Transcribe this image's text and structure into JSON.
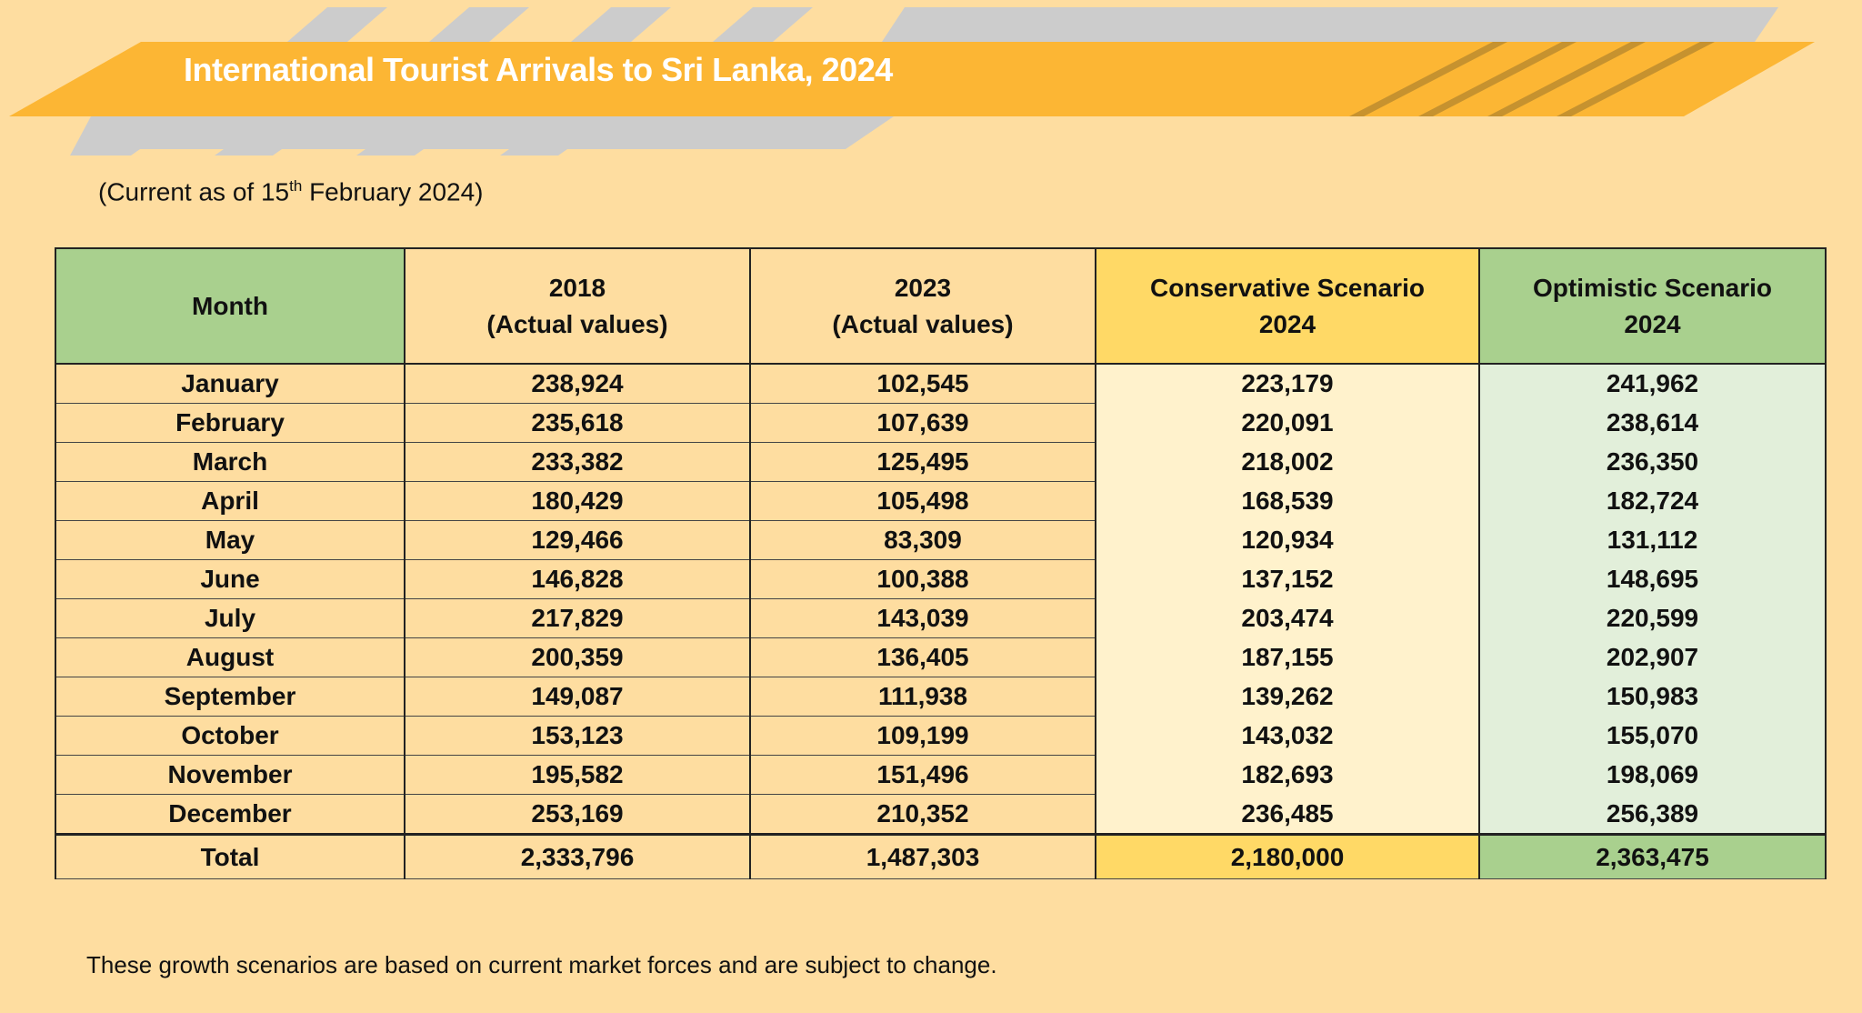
{
  "header": {
    "title": "International Tourist Arrivals to Sri Lanka, 2024",
    "subtitle_prefix": "(Current as of 15",
    "subtitle_sup": "th",
    "subtitle_suffix": " February 2024)"
  },
  "colors": {
    "background": "#FEDDA0",
    "banner": "#FCB634",
    "banner_stripes": "#CCCCCC",
    "month_header": "#A9D08E",
    "conservative_header": "#FFD966",
    "conservative_body": "#FFF2CC",
    "optimistic_header": "#A9D08E",
    "optimistic_body": "#E2EFDA"
  },
  "table": {
    "columns": [
      {
        "line1": "Month",
        "line2": ""
      },
      {
        "line1": "2018",
        "line2": "(Actual values)"
      },
      {
        "line1": "2023",
        "line2": "(Actual values)"
      },
      {
        "line1": "Conservative Scenario",
        "line2": "2024"
      },
      {
        "line1": "Optimistic Scenario",
        "line2": "2024"
      }
    ],
    "rows": [
      [
        "January",
        "238,924",
        "102,545",
        "223,179",
        "241,962"
      ],
      [
        "February",
        "235,618",
        "107,639",
        "220,091",
        "238,614"
      ],
      [
        "March",
        "233,382",
        "125,495",
        "218,002",
        "236,350"
      ],
      [
        "April",
        "180,429",
        "105,498",
        "168,539",
        "182,724"
      ],
      [
        "May",
        "129,466",
        "83,309",
        "120,934",
        "131,112"
      ],
      [
        "June",
        "146,828",
        "100,388",
        "137,152",
        "148,695"
      ],
      [
        "July",
        "217,829",
        "143,039",
        "203,474",
        "220,599"
      ],
      [
        "August",
        "200,359",
        "136,405",
        "187,155",
        "202,907"
      ],
      [
        "September",
        "149,087",
        "111,938",
        "139,262",
        "150,983"
      ],
      [
        "October",
        "153,123",
        "109,199",
        "143,032",
        "155,070"
      ],
      [
        "November",
        "195,582",
        "151,496",
        "182,693",
        "198,069"
      ],
      [
        "December",
        "253,169",
        "210,352",
        "236,485",
        "256,389"
      ]
    ],
    "total": [
      "Total",
      "2,333,796",
      "1,487,303",
      "2,180,000",
      "2,363,475"
    ]
  },
  "footer": "These growth scenarios are based on current market forces and are subject to change."
}
